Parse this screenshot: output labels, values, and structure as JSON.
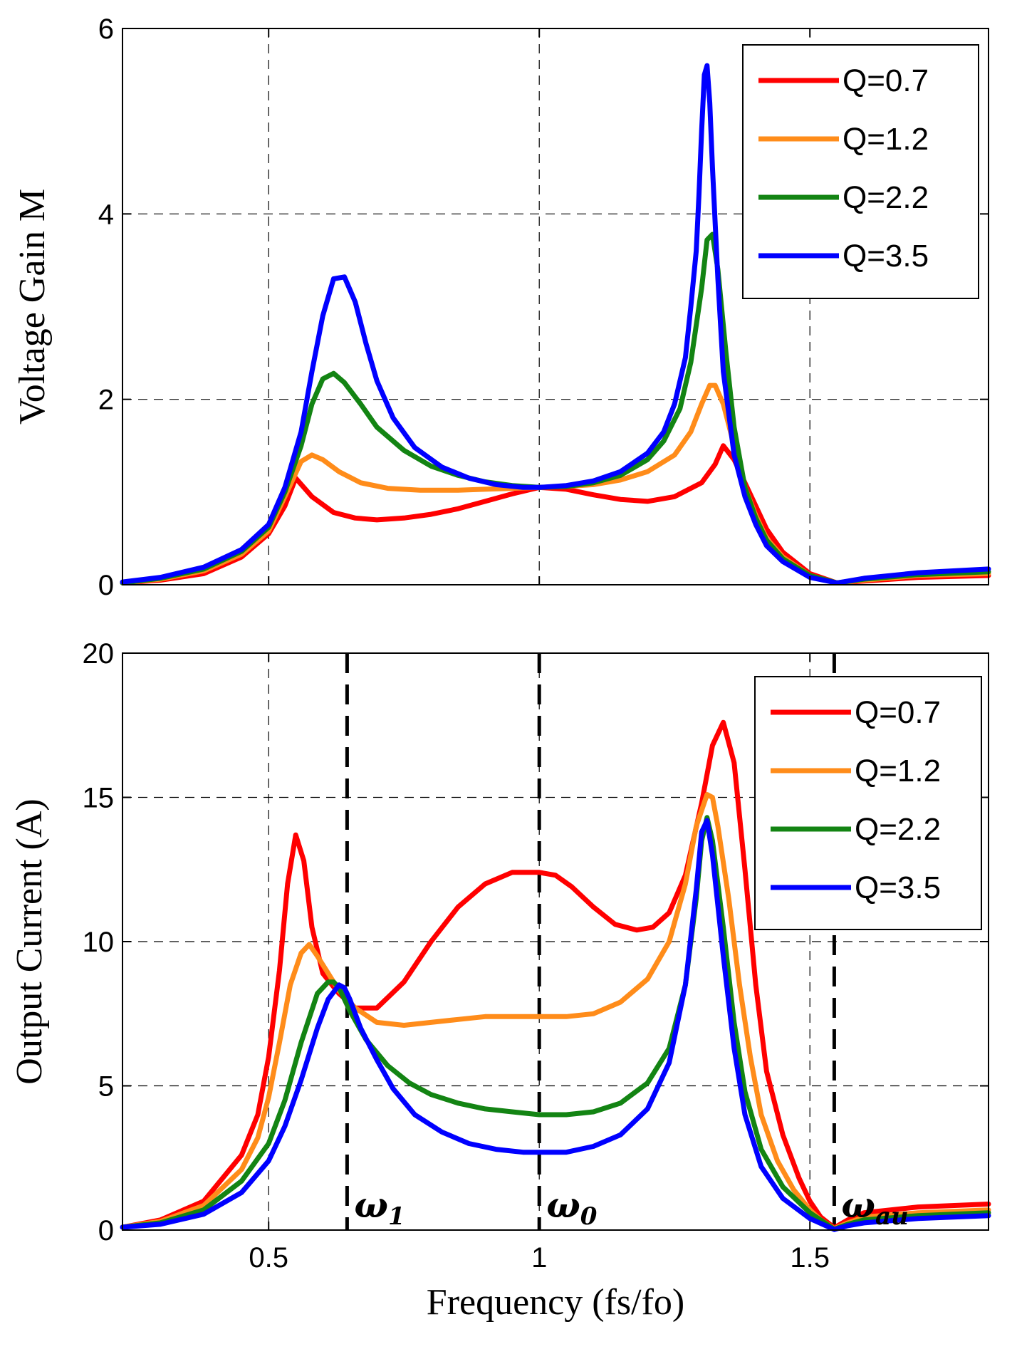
{
  "chart_data": [
    {
      "type": "line",
      "ylabel": "Voltage Gain M",
      "xlabel": "",
      "xlim": [
        0.23,
        1.83
      ],
      "ylim": [
        0,
        6
      ],
      "x_ticks": [
        0.5,
        1,
        1.5
      ],
      "x_tick_labels": [
        "",
        "",
        ""
      ],
      "y_ticks": [
        0,
        2,
        4,
        6
      ],
      "y_tick_labels": [
        "0",
        "2",
        "4",
        "6"
      ],
      "grid": true,
      "legend_position": "top-right",
      "series": [
        {
          "name": "Q=0.7",
          "color": "#ff0000",
          "x": [
            0.23,
            0.3,
            0.38,
            0.45,
            0.5,
            0.53,
            0.55,
            0.58,
            0.62,
            0.66,
            0.7,
            0.75,
            0.8,
            0.85,
            0.9,
            0.95,
            1.0,
            1.05,
            1.1,
            1.15,
            1.2,
            1.25,
            1.3,
            1.325,
            1.34,
            1.36,
            1.38,
            1.4,
            1.42,
            1.45,
            1.5,
            1.55,
            1.6,
            1.7,
            1.83
          ],
          "y": [
            0.02,
            0.05,
            0.12,
            0.3,
            0.55,
            0.85,
            1.15,
            0.95,
            0.78,
            0.72,
            0.7,
            0.72,
            0.76,
            0.82,
            0.9,
            0.98,
            1.05,
            1.03,
            0.97,
            0.92,
            0.9,
            0.95,
            1.1,
            1.3,
            1.5,
            1.35,
            1.1,
            0.85,
            0.6,
            0.35,
            0.12,
            0.02,
            0.04,
            0.08,
            0.1
          ]
        },
        {
          "name": "Q=1.2",
          "color": "#ff8c1a",
          "x": [
            0.23,
            0.3,
            0.38,
            0.45,
            0.5,
            0.53,
            0.56,
            0.58,
            0.6,
            0.63,
            0.67,
            0.72,
            0.78,
            0.85,
            0.9,
            0.95,
            1.0,
            1.05,
            1.1,
            1.15,
            1.2,
            1.25,
            1.28,
            1.3,
            1.315,
            1.325,
            1.34,
            1.36,
            1.38,
            1.4,
            1.42,
            1.45,
            1.5,
            1.55,
            1.6,
            1.7,
            1.83
          ],
          "y": [
            0.02,
            0.06,
            0.15,
            0.33,
            0.58,
            0.95,
            1.33,
            1.4,
            1.35,
            1.22,
            1.1,
            1.04,
            1.02,
            1.02,
            1.03,
            1.04,
            1.05,
            1.06,
            1.08,
            1.13,
            1.22,
            1.4,
            1.65,
            1.95,
            2.15,
            2.15,
            1.95,
            1.5,
            1.05,
            0.75,
            0.5,
            0.3,
            0.1,
            0.02,
            0.05,
            0.1,
            0.12
          ]
        },
        {
          "name": "Q=2.2",
          "color": "#138413",
          "x": [
            0.23,
            0.3,
            0.38,
            0.45,
            0.5,
            0.53,
            0.56,
            0.58,
            0.6,
            0.62,
            0.64,
            0.67,
            0.7,
            0.75,
            0.8,
            0.85,
            0.9,
            0.95,
            1.0,
            1.05,
            1.1,
            1.15,
            1.2,
            1.23,
            1.26,
            1.28,
            1.3,
            1.31,
            1.32,
            1.33,
            1.345,
            1.36,
            1.38,
            1.4,
            1.42,
            1.45,
            1.5,
            1.55,
            1.6,
            1.7,
            1.83
          ],
          "y": [
            0.02,
            0.07,
            0.17,
            0.36,
            0.62,
            1.0,
            1.5,
            1.95,
            2.22,
            2.28,
            2.18,
            1.95,
            1.7,
            1.45,
            1.28,
            1.18,
            1.11,
            1.07,
            1.05,
            1.06,
            1.1,
            1.18,
            1.35,
            1.55,
            1.9,
            2.4,
            3.2,
            3.72,
            3.78,
            3.4,
            2.5,
            1.7,
            1.05,
            0.72,
            0.48,
            0.28,
            0.1,
            0.02,
            0.06,
            0.11,
            0.14
          ]
        },
        {
          "name": "Q=3.5",
          "color": "#0000ff",
          "x": [
            0.23,
            0.3,
            0.38,
            0.45,
            0.5,
            0.53,
            0.56,
            0.58,
            0.6,
            0.62,
            0.64,
            0.66,
            0.68,
            0.7,
            0.73,
            0.77,
            0.82,
            0.87,
            0.92,
            0.97,
            1.0,
            1.05,
            1.1,
            1.15,
            1.2,
            1.23,
            1.25,
            1.27,
            1.28,
            1.29,
            1.295,
            1.3,
            1.305,
            1.31,
            1.315,
            1.32,
            1.33,
            1.34,
            1.36,
            1.38,
            1.4,
            1.42,
            1.45,
            1.5,
            1.55,
            1.6,
            1.7,
            1.83
          ],
          "y": [
            0.03,
            0.08,
            0.19,
            0.38,
            0.65,
            1.05,
            1.65,
            2.3,
            2.9,
            3.3,
            3.32,
            3.05,
            2.6,
            2.2,
            1.8,
            1.48,
            1.27,
            1.15,
            1.08,
            1.05,
            1.05,
            1.07,
            1.12,
            1.22,
            1.42,
            1.65,
            1.95,
            2.45,
            3.0,
            3.6,
            4.2,
            4.9,
            5.5,
            5.6,
            5.2,
            4.5,
            3.3,
            2.3,
            1.4,
            0.95,
            0.65,
            0.42,
            0.25,
            0.08,
            0.02,
            0.07,
            0.13,
            0.17
          ]
        }
      ],
      "annotations": []
    },
    {
      "type": "line",
      "ylabel": "Output Current (A)",
      "xlabel": "Frequency (fs/fo)",
      "xlim": [
        0.23,
        1.83
      ],
      "ylim": [
        0,
        20
      ],
      "x_ticks": [
        0.5,
        1,
        1.5
      ],
      "x_tick_labels": [
        "0.5",
        "1",
        "1.5"
      ],
      "y_ticks": [
        0,
        5,
        10,
        15,
        20
      ],
      "y_tick_labels": [
        "0",
        "5",
        "10",
        "15",
        "20"
      ],
      "grid": true,
      "legend_position": "top-right",
      "series": [
        {
          "name": "Q=0.7",
          "color": "#ff0000",
          "x": [
            0.23,
            0.3,
            0.38,
            0.45,
            0.48,
            0.5,
            0.52,
            0.535,
            0.55,
            0.565,
            0.58,
            0.6,
            0.63,
            0.66,
            0.7,
            0.75,
            0.8,
            0.85,
            0.9,
            0.95,
            1.0,
            1.03,
            1.06,
            1.1,
            1.14,
            1.18,
            1.21,
            1.24,
            1.27,
            1.3,
            1.32,
            1.34,
            1.36,
            1.38,
            1.4,
            1.42,
            1.45,
            1.48,
            1.5,
            1.52,
            1.545,
            1.57,
            1.6,
            1.7,
            1.83
          ],
          "y": [
            0.1,
            0.35,
            1.0,
            2.6,
            4.0,
            6.0,
            9.0,
            12.0,
            13.7,
            12.8,
            10.5,
            8.9,
            8.2,
            7.7,
            7.7,
            8.6,
            10.0,
            11.2,
            12.0,
            12.4,
            12.4,
            12.3,
            11.9,
            11.2,
            10.6,
            10.4,
            10.5,
            11.0,
            12.3,
            14.8,
            16.8,
            17.6,
            16.2,
            12.5,
            8.5,
            5.5,
            3.3,
            1.8,
            1.0,
            0.45,
            0.08,
            0.35,
            0.6,
            0.8,
            0.9
          ]
        },
        {
          "name": "Q=1.2",
          "color": "#ff8c1a",
          "x": [
            0.23,
            0.3,
            0.38,
            0.45,
            0.48,
            0.5,
            0.52,
            0.54,
            0.56,
            0.575,
            0.59,
            0.61,
            0.63,
            0.66,
            0.7,
            0.75,
            0.8,
            0.85,
            0.9,
            0.95,
            1.0,
            1.05,
            1.1,
            1.15,
            1.2,
            1.24,
            1.27,
            1.29,
            1.31,
            1.32,
            1.33,
            1.35,
            1.37,
            1.39,
            1.41,
            1.44,
            1.47,
            1.5,
            1.52,
            1.545,
            1.57,
            1.6,
            1.7,
            1.83
          ],
          "y": [
            0.1,
            0.3,
            0.85,
            2.1,
            3.2,
            4.6,
            6.5,
            8.5,
            9.6,
            9.9,
            9.5,
            8.9,
            8.3,
            7.7,
            7.2,
            7.1,
            7.2,
            7.3,
            7.4,
            7.4,
            7.4,
            7.4,
            7.5,
            7.9,
            8.7,
            10.0,
            12.0,
            14.0,
            15.1,
            15.0,
            14.0,
            11.5,
            8.5,
            6.0,
            4.0,
            2.4,
            1.4,
            0.7,
            0.35,
            0.05,
            0.25,
            0.45,
            0.6,
            0.7
          ]
        },
        {
          "name": "Q=2.2",
          "color": "#138413",
          "x": [
            0.23,
            0.3,
            0.38,
            0.45,
            0.5,
            0.53,
            0.56,
            0.59,
            0.61,
            0.62,
            0.63,
            0.65,
            0.68,
            0.72,
            0.76,
            0.8,
            0.85,
            0.9,
            0.95,
            1.0,
            1.05,
            1.1,
            1.15,
            1.2,
            1.24,
            1.27,
            1.29,
            1.3,
            1.31,
            1.32,
            1.34,
            1.36,
            1.38,
            1.41,
            1.45,
            1.5,
            1.545,
            1.57,
            1.6,
            1.7,
            1.83
          ],
          "y": [
            0.1,
            0.25,
            0.7,
            1.7,
            3.0,
            4.5,
            6.5,
            8.2,
            8.6,
            8.6,
            8.4,
            7.6,
            6.6,
            5.7,
            5.1,
            4.7,
            4.4,
            4.2,
            4.1,
            4.0,
            4.0,
            4.1,
            4.4,
            5.1,
            6.3,
            8.5,
            11.5,
            13.5,
            14.3,
            13.5,
            10.5,
            7.2,
            4.8,
            2.8,
            1.5,
            0.6,
            0.03,
            0.2,
            0.35,
            0.5,
            0.6
          ]
        },
        {
          "name": "Q=3.5",
          "color": "#0000ff",
          "x": [
            0.23,
            0.3,
            0.38,
            0.45,
            0.5,
            0.53,
            0.56,
            0.59,
            0.61,
            0.63,
            0.64,
            0.65,
            0.67,
            0.7,
            0.73,
            0.77,
            0.82,
            0.87,
            0.92,
            0.97,
            1.0,
            1.05,
            1.1,
            1.15,
            1.2,
            1.24,
            1.27,
            1.29,
            1.3,
            1.31,
            1.32,
            1.34,
            1.36,
            1.38,
            1.41,
            1.45,
            1.5,
            1.545,
            1.57,
            1.6,
            1.7,
            1.83
          ],
          "y": [
            0.1,
            0.2,
            0.55,
            1.3,
            2.4,
            3.6,
            5.2,
            7.0,
            8.0,
            8.5,
            8.4,
            8.0,
            7.0,
            5.9,
            4.9,
            4.0,
            3.4,
            3.0,
            2.8,
            2.7,
            2.7,
            2.7,
            2.9,
            3.3,
            4.2,
            5.8,
            8.5,
            11.8,
            13.8,
            14.2,
            13.0,
            9.5,
            6.3,
            4.0,
            2.2,
            1.1,
            0.4,
            0.02,
            0.15,
            0.25,
            0.4,
            0.5
          ]
        }
      ],
      "annotations": [
        {
          "x": 0.645,
          "label": "ω",
          "subscript": "1"
        },
        {
          "x": 1.0,
          "label": "ω",
          "subscript": "0"
        },
        {
          "x": 1.545,
          "label": "ω",
          "subscript": "au"
        }
      ]
    }
  ]
}
